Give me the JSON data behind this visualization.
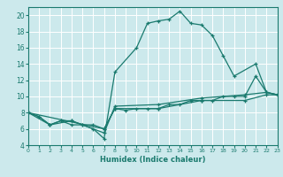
{
  "xlabel": "Humidex (Indice chaleur)",
  "bg_color": "#cce9ec",
  "line_color": "#1a7a6e",
  "grid_color": "#b8d8dc",
  "xlim": [
    0,
    23
  ],
  "ylim": [
    4,
    21
  ],
  "xticks": [
    0,
    1,
    2,
    3,
    4,
    5,
    6,
    7,
    8,
    9,
    10,
    11,
    12,
    13,
    14,
    15,
    16,
    17,
    18,
    19,
    20,
    21,
    22,
    23
  ],
  "yticks": [
    4,
    6,
    8,
    10,
    12,
    14,
    16,
    18,
    20
  ],
  "curve1": [
    [
      0,
      8.0
    ],
    [
      1,
      7.5
    ],
    [
      2,
      6.5
    ],
    [
      3,
      7.0
    ],
    [
      4,
      6.5
    ],
    [
      5,
      6.5
    ],
    [
      6,
      6.0
    ],
    [
      7,
      4.8
    ],
    [
      8,
      13.0
    ],
    [
      10,
      16.0
    ],
    [
      11,
      19.0
    ],
    [
      12,
      19.3
    ],
    [
      13,
      19.5
    ],
    [
      14,
      20.5
    ],
    [
      15,
      19.0
    ],
    [
      16,
      18.8
    ],
    [
      17,
      17.5
    ],
    [
      18,
      15.0
    ],
    [
      19,
      12.5
    ],
    [
      21,
      14.0
    ],
    [
      22,
      10.5
    ],
    [
      23,
      10.2
    ]
  ],
  "curve2": [
    [
      0,
      8.0
    ],
    [
      1,
      7.5
    ],
    [
      2,
      6.5
    ],
    [
      3,
      7.0
    ],
    [
      4,
      7.0
    ],
    [
      5,
      6.5
    ],
    [
      6,
      6.5
    ],
    [
      7,
      6.0
    ],
    [
      8,
      8.5
    ],
    [
      9,
      8.3
    ],
    [
      10,
      8.5
    ],
    [
      11,
      8.5
    ],
    [
      12,
      8.5
    ],
    [
      13,
      9.0
    ],
    [
      14,
      9.0
    ],
    [
      15,
      9.5
    ],
    [
      16,
      9.5
    ],
    [
      17,
      9.5
    ],
    [
      18,
      10.0
    ],
    [
      19,
      10.0
    ],
    [
      20,
      10.0
    ],
    [
      21,
      12.5
    ],
    [
      22,
      10.5
    ],
    [
      23,
      10.2
    ]
  ],
  "curve3": [
    [
      0,
      8.0
    ],
    [
      2,
      6.5
    ],
    [
      4,
      7.0
    ],
    [
      7,
      5.5
    ],
    [
      8,
      8.8
    ],
    [
      12,
      9.0
    ],
    [
      16,
      9.8
    ],
    [
      20,
      10.2
    ],
    [
      22,
      10.5
    ],
    [
      23,
      10.2
    ]
  ],
  "curve4": [
    [
      0,
      8.0
    ],
    [
      7,
      6.0
    ],
    [
      8,
      8.5
    ],
    [
      12,
      8.5
    ],
    [
      16,
      9.5
    ],
    [
      20,
      9.5
    ],
    [
      22,
      10.2
    ],
    [
      23,
      10.2
    ]
  ]
}
